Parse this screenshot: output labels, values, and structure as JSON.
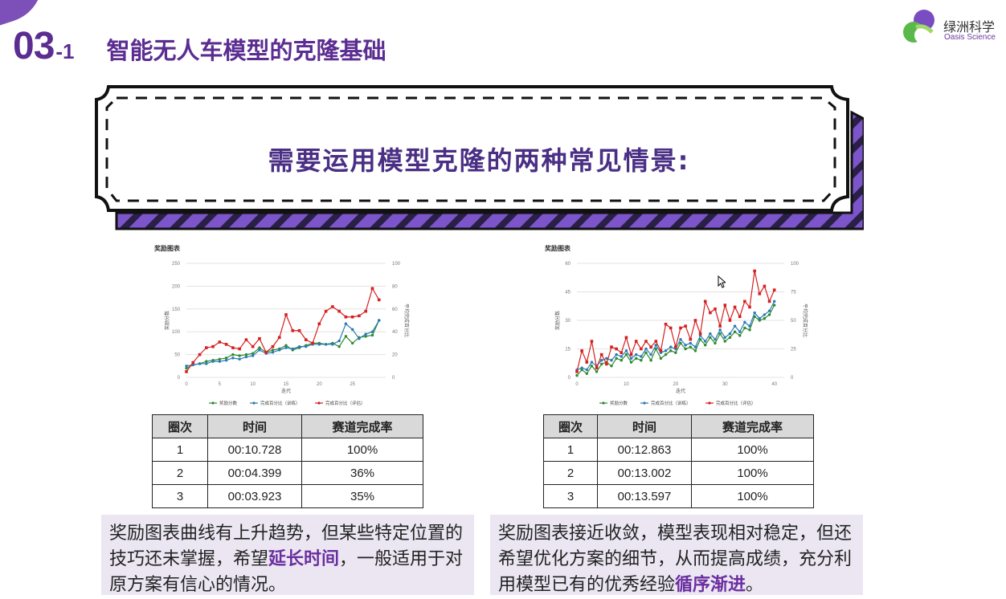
{
  "header": {
    "section_number": "03",
    "section_sub": "-1",
    "title": "智能无人车模型的克隆基础"
  },
  "logo": {
    "name_cn": "绿洲科学",
    "name_en": "Oasis Science",
    "colors": [
      "#7a4cc2",
      "#5bb84a",
      "#a0d96a"
    ]
  },
  "banner": {
    "text": "需要运用模型克隆的两种常见情景:"
  },
  "left_panel": {
    "table": {
      "headers": [
        "圈次",
        "时间",
        "赛道完成率"
      ],
      "rows": [
        [
          "1",
          "00:10.728",
          "100%"
        ],
        [
          "2",
          "00:04.399",
          "36%"
        ],
        [
          "3",
          "00:03.923",
          "35%"
        ]
      ]
    },
    "note": {
      "text_before": "奖励图表曲线有上升趋势，但某些特定位置的技巧还未掌握，希望",
      "highlight": "延长时间",
      "text_after": "，一般适用于对原方案有信心的情况。"
    }
  },
  "right_panel": {
    "table": {
      "headers": [
        "圈次",
        "时间",
        "赛道完成率"
      ],
      "rows": [
        [
          "1",
          "00:12.863",
          "100%"
        ],
        [
          "2",
          "00:13.002",
          "100%"
        ],
        [
          "3",
          "00:13.597",
          "100%"
        ]
      ]
    },
    "note": {
      "text_before": "奖励图表接近收敛，模型表现相对稳定，但还希望优化方案的细节，从而提高成绩，充分利用模型已有的优秀经验",
      "highlight": "循序渐进",
      "text_after": "。"
    }
  },
  "chart_data": [
    {
      "type": "line",
      "title": "奖励图表",
      "xlabel": "迭代",
      "ylabel": "奖励分数",
      "y2label": "平均完成百分比",
      "xlim": [
        0,
        30
      ],
      "ylim": [
        0,
        250
      ],
      "y2lim": [
        0,
        100
      ],
      "xticks": [
        "0",
        "5",
        "10",
        "15",
        "20",
        "25"
      ],
      "yticks": [
        "0",
        "50",
        "100",
        "150",
        "200",
        "250"
      ],
      "y2ticks": [
        "0",
        "20",
        "40",
        "60",
        "80",
        "100"
      ],
      "legend_position": "bottom",
      "x": [
        0,
        1,
        2,
        3,
        4,
        5,
        6,
        7,
        8,
        9,
        10,
        11,
        12,
        13,
        14,
        15,
        16,
        17,
        18,
        19,
        20,
        21,
        22,
        23,
        24,
        25,
        26,
        27,
        28,
        29
      ],
      "series": [
        {
          "name": "奖励分数",
          "axis": "y2",
          "color": "#2e8b2e",
          "values": [
            8,
            11,
            12,
            14,
            15,
            16,
            17,
            20,
            19,
            20,
            21,
            26,
            22,
            24,
            25,
            28,
            24,
            26,
            28,
            30,
            30,
            29,
            30,
            27,
            36,
            30,
            35,
            36,
            37,
            50
          ]
        },
        {
          "name": "完成百分比（训练）",
          "axis": "y2",
          "color": "#2a7ab8",
          "values": [
            10,
            11,
            12,
            12,
            14,
            14,
            15,
            17,
            16,
            18,
            19,
            24,
            21,
            22,
            24,
            26,
            25,
            27,
            27,
            29,
            29,
            29,
            29,
            32,
            47,
            42,
            34,
            38,
            40,
            50
          ]
        },
        {
          "name": "完成百分比（评估）",
          "axis": "y2",
          "color": "#d62020",
          "values": [
            5,
            13,
            20,
            26,
            27,
            31,
            29,
            26,
            25,
            33,
            27,
            34,
            22,
            27,
            35,
            55,
            41,
            41,
            33,
            30,
            47,
            58,
            62,
            58,
            53,
            53,
            54,
            58,
            78,
            68
          ]
        }
      ]
    },
    {
      "type": "line",
      "title": "奖励图表",
      "xlabel": "迭代",
      "ylabel": "奖励分数",
      "y2label": "平均完成百分比",
      "xlim": [
        0,
        42
      ],
      "ylim": [
        0,
        60
      ],
      "y2lim": [
        0,
        100
      ],
      "xticks": [
        "0",
        "10",
        "20",
        "30",
        "40"
      ],
      "yticks": [
        "0",
        "15",
        "30",
        "45",
        "60"
      ],
      "y2ticks": [
        "0",
        "25",
        "50",
        "75",
        "100"
      ],
      "legend_position": "bottom",
      "x": [
        0,
        1,
        2,
        3,
        4,
        5,
        6,
        7,
        8,
        9,
        10,
        11,
        12,
        13,
        14,
        15,
        16,
        17,
        18,
        19,
        20,
        21,
        22,
        23,
        24,
        25,
        26,
        27,
        28,
        29,
        30,
        31,
        32,
        33,
        34,
        35,
        36,
        37,
        38,
        39,
        40
      ],
      "series": [
        {
          "name": "奖励分数",
          "axis": "y",
          "color": "#2e8b2e",
          "values": [
            1,
            4,
            2,
            6,
            3,
            7,
            8,
            6,
            10,
            9,
            12,
            8,
            10,
            9,
            13,
            9,
            15,
            10,
            12,
            14,
            13,
            18,
            15,
            16,
            14,
            20,
            17,
            21,
            18,
            23,
            19,
            21,
            24,
            22,
            26,
            25,
            32,
            30,
            31,
            33,
            38
          ]
        },
        {
          "name": "完成百分比（训练）",
          "axis": "y",
          "color": "#2a7ab8",
          "values": [
            4,
            5,
            4,
            8,
            6,
            9,
            10,
            9,
            12,
            11,
            14,
            10,
            12,
            11,
            15,
            12,
            17,
            13,
            14,
            16,
            15,
            20,
            17,
            18,
            16,
            22,
            19,
            23,
            20,
            25,
            21,
            23,
            27,
            24,
            29,
            27,
            34,
            31,
            33,
            35,
            40
          ]
        },
        {
          "name": "完成百分比（评估）",
          "axis": "y",
          "color": "#d62020",
          "values": [
            3,
            14,
            8,
            19,
            5,
            12,
            7,
            16,
            15,
            13,
            21,
            12,
            19,
            15,
            19,
            16,
            19,
            14,
            28,
            26,
            16,
            26,
            27,
            20,
            30,
            23,
            40,
            34,
            36,
            27,
            38,
            30,
            37,
            32,
            40,
            37,
            56,
            44,
            48,
            40,
            46
          ]
        }
      ]
    }
  ]
}
